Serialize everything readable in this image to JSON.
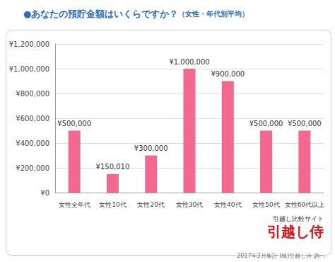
{
  "chart_data": {
    "type": "bar",
    "title": "●あなたの預貯金額はいくらですか？",
    "subtitle": "（女性・年代別平均）",
    "categories": [
      "女性全年代",
      "女性10代",
      "女性20代",
      "女性30代",
      "女性40代",
      "女性50代",
      "女性60代以上"
    ],
    "values": [
      500000,
      150010,
      300000,
      1000000,
      900000,
      500000,
      500000
    ],
    "value_labels": [
      "¥500,000",
      "¥150,010",
      "¥300,000",
      "¥1,000,000",
      "¥900,000",
      "¥500,000",
      "¥500,000"
    ],
    "data_labels": true,
    "color": "#f4688f",
    "ylim": [
      0,
      1200000
    ],
    "yticks": [
      {
        "value": 0,
        "label": "¥0"
      },
      {
        "value": 200000,
        "label": "¥200,000"
      },
      {
        "value": 400000,
        "label": "¥400,000"
      },
      {
        "value": 600000,
        "label": "¥600,000"
      },
      {
        "value": 800000,
        "label": "¥800,000"
      },
      {
        "value": 1000000,
        "label": "¥1,000,000"
      },
      {
        "value": 1200000,
        "label": "¥1,200,000"
      }
    ],
    "grid": true,
    "annotations": [
      "引越し比較サイト",
      "引越し侍",
      "2017年3月集計 (株)引越し侍 調べ"
    ]
  }
}
